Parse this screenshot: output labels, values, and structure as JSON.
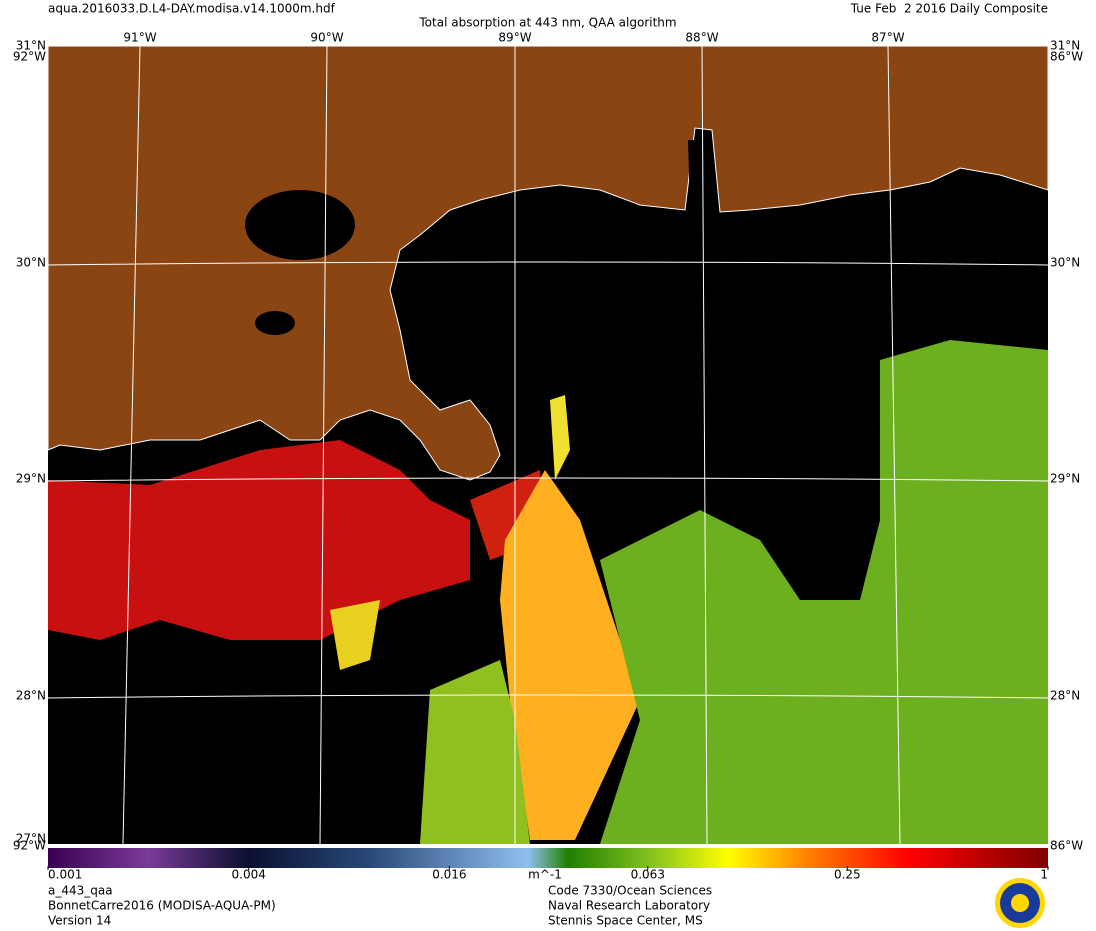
{
  "header": {
    "filename": "aqua.2016033.D.L4-DAY.modisa.v14.1000m.hdf",
    "title": "Total absorption at 443 nm, QAA algorithm",
    "date": "Tue Feb  2 2016 Daily Composite"
  },
  "map": {
    "lon_labels": [
      "91°W",
      "90°W",
      "89°W",
      "88°W",
      "87°W"
    ],
    "lat_labels": [
      "31°N",
      "30°N",
      "29°N",
      "28°N"
    ],
    "corner_labels": {
      "top_left_lon": "92°W",
      "top_right_lon": "86°W",
      "bottom_lat": "27°N",
      "bottom_left_lon": "92°W",
      "bottom_right_lon": "86°W"
    }
  },
  "colorbar": {
    "range": [
      0.001,
      1
    ],
    "log_scale": true,
    "ticks": [
      0.001,
      0.004,
      0.016,
      0.063,
      0.25,
      1
    ],
    "unit": "m^-1"
  },
  "footer": {
    "left": [
      "a_443_qaa",
      "BonnetCarre2016 (MODISA-AQUA-PM)",
      "Version 14"
    ],
    "right": [
      "Code 7330/Ocean Sciences",
      "Naval Research Laboratory",
      "Stennis Space Center, MS"
    ]
  }
}
